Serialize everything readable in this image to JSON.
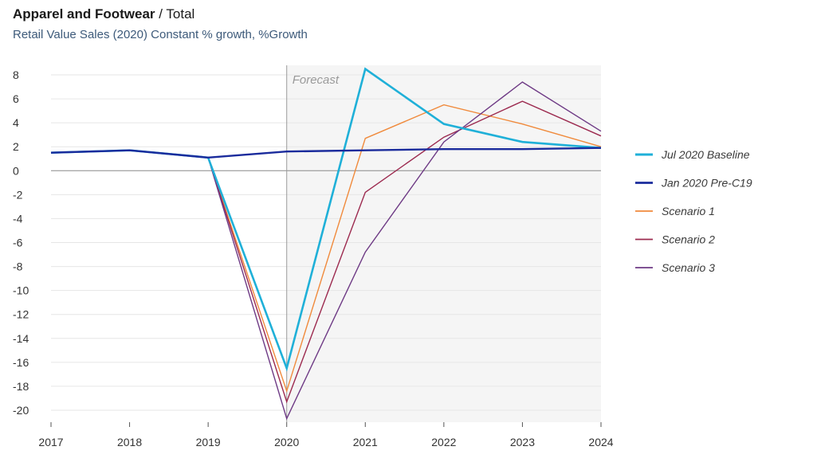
{
  "header": {
    "title_bold": "Apparel and Footwear",
    "title_rest": " / Total",
    "subtitle": "Retail Value Sales (2020) Constant % growth, %Growth"
  },
  "chart_data": {
    "type": "line",
    "title": "Apparel and Footwear / Total",
    "subtitle": "Retail Value Sales (2020) Constant % growth, %Growth",
    "xlabel": "",
    "ylabel": "",
    "x": [
      "2017",
      "2018",
      "2019",
      "2020",
      "2021",
      "2022",
      "2023",
      "2024"
    ],
    "ylim": [
      -21,
      8.8
    ],
    "yticks": [
      8,
      6,
      4,
      2,
      0,
      -2,
      -4,
      -6,
      -8,
      -10,
      -12,
      -14,
      -16,
      -18,
      -20
    ],
    "forecast": {
      "label": "Forecast",
      "start": "2020",
      "end": "2024"
    },
    "grid": "horizontal",
    "legend_position": "right",
    "series": [
      {
        "name": "Jul 2020 Baseline",
        "color": "#1fb0d8",
        "width": 2.6,
        "values": [
          1.5,
          1.7,
          1.1,
          -16.5,
          8.5,
          3.9,
          2.4,
          1.9
        ]
      },
      {
        "name": "Jan 2020 Pre-C19",
        "color": "#1a2b9c",
        "width": 2.4,
        "values": [
          1.5,
          1.7,
          1.1,
          1.6,
          1.7,
          1.8,
          1.8,
          1.9
        ]
      },
      {
        "name": "Scenario 1",
        "color": "#f08a3c",
        "width": 1.4,
        "values": [
          1.5,
          1.7,
          1.1,
          -18.4,
          2.7,
          5.5,
          3.9,
          2.0
        ]
      },
      {
        "name": "Scenario 2",
        "color": "#9c2a4f",
        "width": 1.4,
        "values": [
          1.5,
          1.7,
          1.1,
          -19.3,
          -1.8,
          2.8,
          5.8,
          2.9
        ]
      },
      {
        "name": "Scenario 3",
        "color": "#6e3a85",
        "width": 1.4,
        "values": [
          1.5,
          1.7,
          1.1,
          -20.7,
          -6.8,
          2.4,
          7.4,
          3.3
        ]
      }
    ]
  }
}
